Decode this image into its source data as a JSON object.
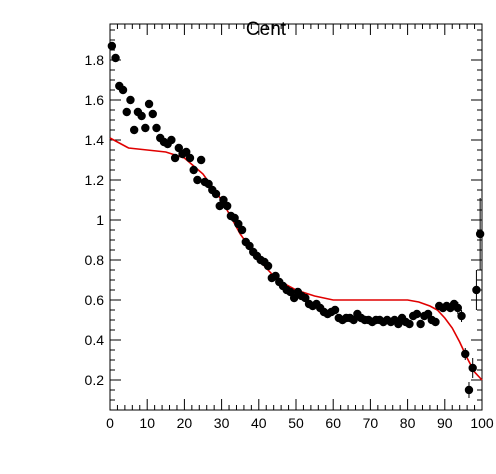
{
  "chart_data": {
    "type": "scatter",
    "title": "Cent",
    "xlabel": "",
    "ylabel": "",
    "xlim": [
      0,
      100
    ],
    "ylim": [
      0.05,
      1.98
    ],
    "x_ticks": [
      0,
      10,
      20,
      30,
      40,
      50,
      60,
      70,
      80,
      90,
      100
    ],
    "y_ticks": [
      0.2,
      0.4,
      0.6,
      0.8,
      1,
      1.2,
      1.4,
      1.6,
      1.8
    ],
    "grid": false,
    "legend": "none",
    "colors": {
      "markers": "#000000",
      "curve": "#e00000",
      "axes": "#000000"
    },
    "series": [
      {
        "type": "scatter",
        "x": [
          0.5,
          1.5,
          2.5,
          3.5,
          4.5,
          5.5,
          6.5,
          7.5,
          8.5,
          9.5,
          10.5,
          11.5,
          12.5,
          13.5,
          14.5,
          15.5,
          16.5,
          17.5,
          18.5,
          19.5,
          20.5,
          21.5,
          22.5,
          23.5,
          24.5,
          25.5,
          26.5,
          27.5,
          28.5,
          29.5,
          30.5,
          31.5,
          32.5,
          33.5,
          34.5,
          35.5,
          36.5,
          37.5,
          38.5,
          39.5,
          40.5,
          41.5,
          42.5,
          43.5,
          44.5,
          45.5,
          46.5,
          47.5,
          48.5,
          49.5,
          50.5,
          51.5,
          52.5,
          53.5,
          54.5,
          55.5,
          56.5,
          57.5,
          58.5,
          59.5,
          60.5,
          61.5,
          62.5,
          63.5,
          64.5,
          65.5,
          66.5,
          67.5,
          68.5,
          69.5,
          70.5,
          71.5,
          72.5,
          73.5,
          74.5,
          75.5,
          76.5,
          77.5,
          78.5,
          79.5,
          80.5,
          81.5,
          82.5,
          83.5,
          84.5,
          85.5,
          86.5,
          87.5,
          88.5,
          89.5,
          90.5,
          91.5,
          92.5,
          93.5,
          94.5,
          95.5,
          96.5,
          97.5,
          98.5,
          99.5
        ],
        "y": [
          1.87,
          1.81,
          1.67,
          1.65,
          1.54,
          1.6,
          1.45,
          1.54,
          1.52,
          1.46,
          1.58,
          1.53,
          1.46,
          1.41,
          1.39,
          1.38,
          1.4,
          1.31,
          1.36,
          1.33,
          1.34,
          1.31,
          1.25,
          1.2,
          1.3,
          1.19,
          1.18,
          1.15,
          1.13,
          1.07,
          1.1,
          1.07,
          1.02,
          1.01,
          0.98,
          0.95,
          0.89,
          0.87,
          0.84,
          0.82,
          0.8,
          0.79,
          0.77,
          0.71,
          0.72,
          0.69,
          0.67,
          0.65,
          0.64,
          0.61,
          0.64,
          0.62,
          0.61,
          0.58,
          0.57,
          0.58,
          0.56,
          0.54,
          0.53,
          0.54,
          0.55,
          0.51,
          0.5,
          0.51,
          0.51,
          0.5,
          0.53,
          0.51,
          0.5,
          0.5,
          0.49,
          0.5,
          0.5,
          0.49,
          0.5,
          0.49,
          0.5,
          0.48,
          0.51,
          0.49,
          0.48,
          0.52,
          0.53,
          0.48,
          0.52,
          0.53,
          0.5,
          0.49,
          0.57,
          0.56,
          0.57,
          0.56,
          0.58,
          0.56,
          0.52,
          0.33,
          0.15,
          0.26,
          0.65,
          0.93
        ],
        "error": [
          0.012,
          0.012,
          0.012,
          0.012,
          0.012,
          0.012,
          0.012,
          0.012,
          0.012,
          0.012,
          0.012,
          0.012,
          0.012,
          0.012,
          0.012,
          0.012,
          0.012,
          0.012,
          0.012,
          0.012,
          0.012,
          0.012,
          0.012,
          0.012,
          0.012,
          0.012,
          0.012,
          0.012,
          0.012,
          0.012,
          0.012,
          0.012,
          0.012,
          0.012,
          0.012,
          0.012,
          0.012,
          0.012,
          0.012,
          0.012,
          0.012,
          0.012,
          0.012,
          0.012,
          0.012,
          0.012,
          0.012,
          0.012,
          0.012,
          0.012,
          0.012,
          0.012,
          0.012,
          0.012,
          0.012,
          0.012,
          0.012,
          0.012,
          0.012,
          0.012,
          0.012,
          0.012,
          0.012,
          0.012,
          0.012,
          0.012,
          0.012,
          0.012,
          0.012,
          0.012,
          0.012,
          0.012,
          0.012,
          0.012,
          0.012,
          0.012,
          0.012,
          0.012,
          0.012,
          0.012,
          0.012,
          0.012,
          0.012,
          0.012,
          0.012,
          0.012,
          0.012,
          0.012,
          0.02,
          0.02,
          0.02,
          0.02,
          0.025,
          0.03,
          0.03,
          0.03,
          0.04,
          0.05,
          0.1,
          0.18
        ]
      },
      {
        "type": "line",
        "x": [
          0,
          5,
          10,
          15,
          20,
          25,
          30,
          35,
          40,
          45,
          50,
          55,
          60,
          65,
          70,
          75,
          80,
          83,
          86,
          88,
          90,
          92,
          94,
          96,
          98,
          100
        ],
        "y": [
          1.41,
          1.36,
          1.35,
          1.34,
          1.31,
          1.23,
          1.1,
          0.93,
          0.8,
          0.7,
          0.65,
          0.62,
          0.6,
          0.6,
          0.6,
          0.6,
          0.6,
          0.59,
          0.57,
          0.55,
          0.51,
          0.46,
          0.39,
          0.31,
          0.24,
          0.2
        ]
      }
    ]
  }
}
